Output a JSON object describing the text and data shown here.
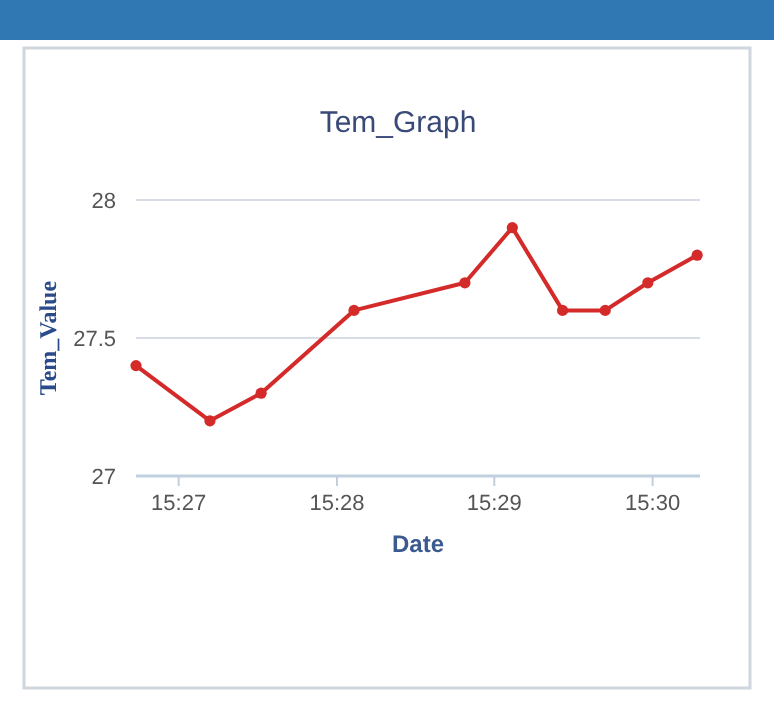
{
  "chart_data": {
    "type": "line",
    "title": "Tem_Graph",
    "xlabel": "Date",
    "ylabel": "Tem_Value",
    "x": [
      15.4455,
      15.4533,
      15.4587,
      15.4685,
      15.4802,
      15.4852,
      15.4905,
      15.495,
      15.4995,
      15.5047
    ],
    "series": [
      {
        "color": "#d42a2a",
        "values": [
          27.4,
          27.2,
          27.3,
          27.6,
          27.7,
          27.9,
          27.6,
          27.6,
          27.7,
          27.8
        ]
      }
    ],
    "xlim": [
      15.4455,
      15.505
    ],
    "xticks": [
      {
        "value": 15.45,
        "label": "15:27"
      },
      {
        "value": 15.4667,
        "label": "15:28"
      },
      {
        "value": 15.4833,
        "label": "15:29"
      },
      {
        "value": 15.5,
        "label": "15:30"
      }
    ],
    "ylim": [
      27,
      28
    ],
    "yticks": [
      27,
      27.5,
      28
    ],
    "grid": "y",
    "marker": "circle",
    "line_style": "solid"
  }
}
